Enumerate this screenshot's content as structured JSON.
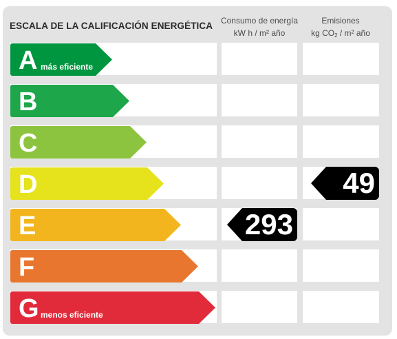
{
  "title": "ESCALA DE LA CALIFICACIÓN ENERGÉTICA",
  "columns": {
    "consumo": {
      "line1": "Consumo de energía",
      "line2": "kW h  / m² año"
    },
    "emisiones": {
      "line1": "Emisiones",
      "line2_pre": "kg CO",
      "line2_sub": "2",
      "line2_post": "  / m² año"
    }
  },
  "classes": [
    {
      "letter": "A",
      "sub": "más eficiente",
      "color": "#00963f"
    },
    {
      "letter": "B",
      "sub": "",
      "color": "#1da64a"
    },
    {
      "letter": "C",
      "sub": "",
      "color": "#8cc43f"
    },
    {
      "letter": "D",
      "sub": "",
      "color": "#e6e21c"
    },
    {
      "letter": "E",
      "sub": "",
      "color": "#f3b51e"
    },
    {
      "letter": "F",
      "sub": "",
      "color": "#e9762f"
    },
    {
      "letter": "G",
      "sub": "menos eficiente",
      "color": "#e12a3a"
    }
  ],
  "ratings": {
    "consumo": {
      "value": "293",
      "class": "E"
    },
    "emisiones": {
      "value": "49",
      "class": "D"
    }
  }
}
